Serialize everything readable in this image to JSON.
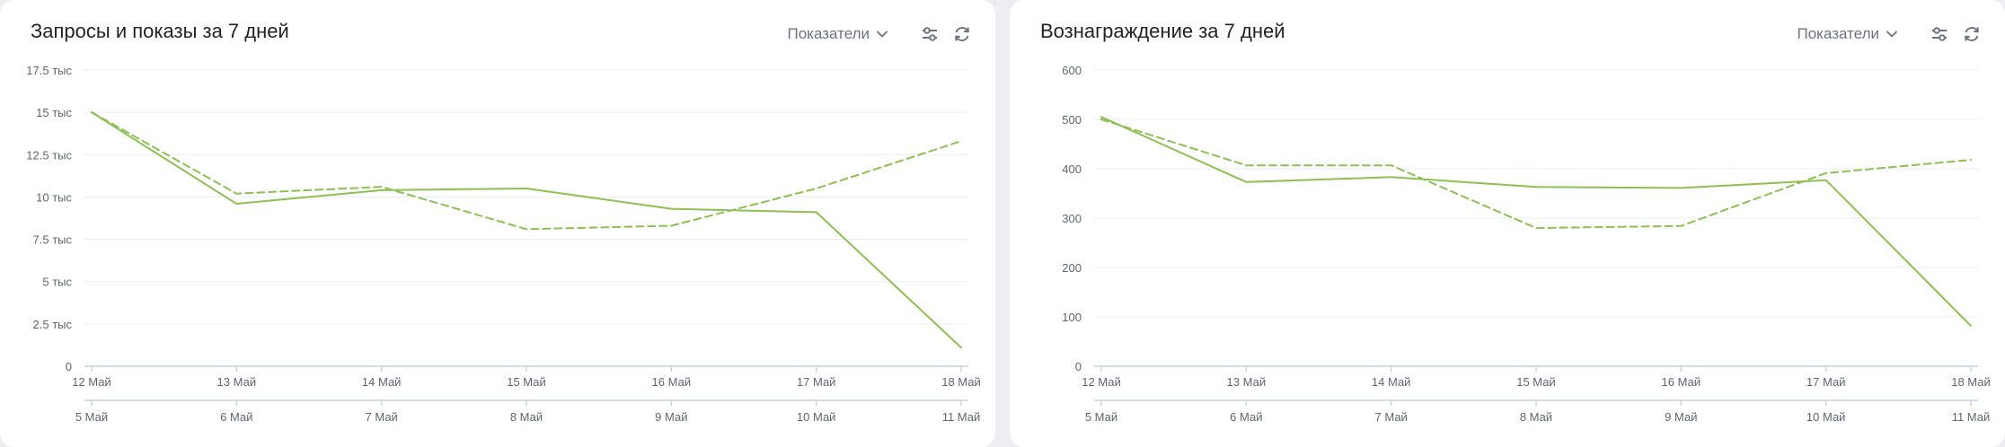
{
  "controls": {
    "metrics_label": "Показатели",
    "settings_icon": "sliders-icon",
    "refresh_icon": "refresh-icon"
  },
  "colors": {
    "series": "#8cc152",
    "grid": "#ebedf0",
    "axis": "#c9d2e3",
    "tick_text": "#5f6672"
  },
  "chart_data": [
    {
      "type": "line",
      "title": "Запросы и показы за 7 дней",
      "x": [
        "12 Май",
        "13 Май",
        "14 Май",
        "15 Май",
        "16 Май",
        "17 Май",
        "18 Май"
      ],
      "x_secondary": [
        "5 Май",
        "6 Май",
        "7 Май",
        "8 Май",
        "9 Май",
        "10 Май",
        "11 Май"
      ],
      "ylim": [
        0,
        17500
      ],
      "yticks": [
        0,
        2500,
        5000,
        7500,
        10000,
        12500,
        15000,
        17500
      ],
      "ytick_labels": [
        "0",
        "2.5 тыс",
        "5 тыс",
        "7.5 тыс",
        "10 тыс",
        "12.5 тыс",
        "15 тыс",
        "17.5 тыс"
      ],
      "grid": true,
      "legend": "none",
      "series": [
        {
          "style": "solid",
          "values": [
            15000,
            9600,
            10400,
            10500,
            9300,
            9100,
            1100
          ]
        },
        {
          "style": "dashed",
          "values": [
            15000,
            10200,
            10600,
            8100,
            8300,
            10500,
            13300
          ]
        }
      ]
    },
    {
      "type": "line",
      "title": "Вознаграждение за 7 дней",
      "x": [
        "12 Май",
        "13 Май",
        "14 Май",
        "15 Май",
        "16 Май",
        "17 Май",
        "18 Май"
      ],
      "x_secondary": [
        "5 Май",
        "6 Май",
        "7 Май",
        "8 Май",
        "9 Май",
        "10 Май",
        "11 Май"
      ],
      "ylim": [
        0,
        600
      ],
      "yticks": [
        0,
        100,
        200,
        300,
        400,
        500,
        600
      ],
      "ytick_labels": [
        "0",
        "100",
        "200",
        "300",
        "400",
        "500",
        "600"
      ],
      "grid": true,
      "legend": "none",
      "series": [
        {
          "style": "solid",
          "values": [
            505,
            373,
            383,
            363,
            361,
            377,
            82
          ]
        },
        {
          "style": "dashed",
          "values": [
            500,
            407,
            407,
            280,
            284,
            391,
            418
          ]
        }
      ]
    }
  ]
}
